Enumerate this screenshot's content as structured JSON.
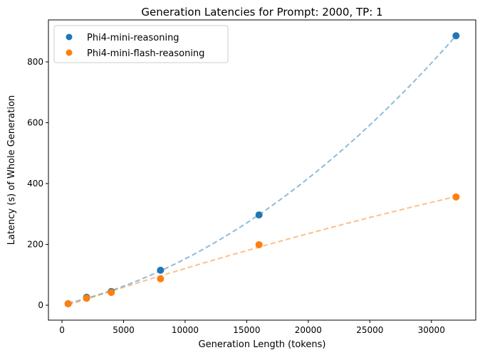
{
  "chart_data": {
    "type": "scatter",
    "title": "Generation Latencies for Prompt: 2000, TP: 1",
    "xlabel": "Generation Length (tokens)",
    "ylabel": "Latency (s) of Whole Generation",
    "xlim": [
      -1100,
      33600
    ],
    "ylim": [
      -49,
      938
    ],
    "xticks": [
      0,
      5000,
      10000,
      15000,
      20000,
      25000,
      30000
    ],
    "yticks": [
      0,
      200,
      400,
      600,
      800
    ],
    "grid": false,
    "legend_position": "top-left",
    "series": [
      {
        "name": "Phi4-mini-reasoning",
        "color": "#1f77b4",
        "x": [
          500,
          2000,
          4000,
          8000,
          16000,
          32000
        ],
        "y": [
          5,
          26,
          45,
          115,
          297,
          886
        ],
        "trend": "quadratic-dashed"
      },
      {
        "name": "Phi4-mini-flash-reasoning",
        "color": "#ff7f0e",
        "x": [
          500,
          2000,
          4000,
          8000,
          16000,
          32000
        ],
        "y": [
          5,
          23,
          42,
          87,
          199,
          356
        ],
        "trend": "quadratic-dashed"
      }
    ]
  }
}
